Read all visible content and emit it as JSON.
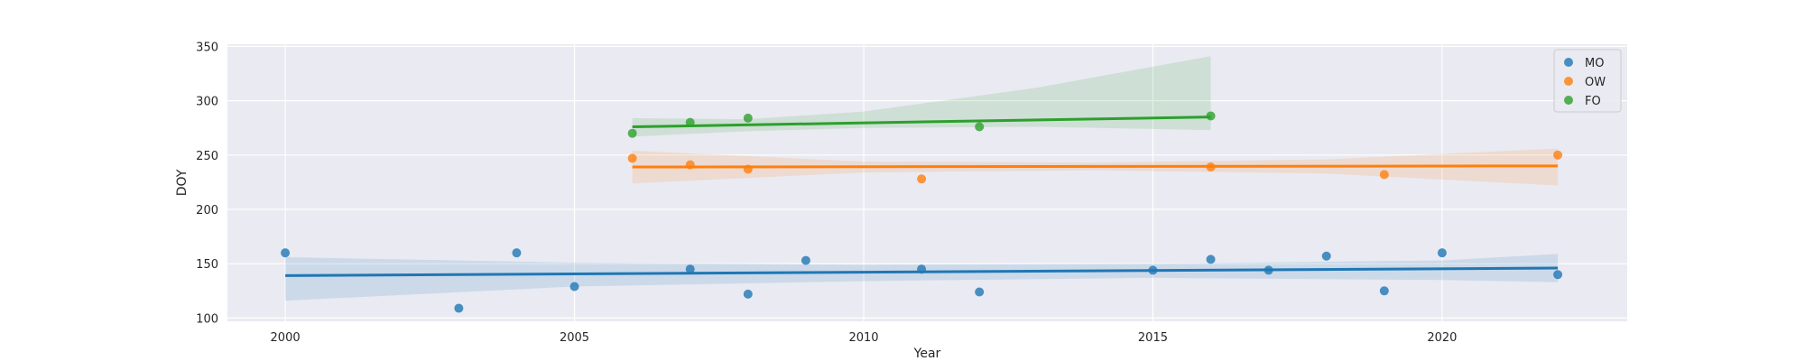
{
  "chart_data": {
    "type": "scatter",
    "xlabel": "Year",
    "ylabel": "DOY",
    "xlim": [
      1999,
      2023.2
    ],
    "ylim": [
      97,
      352
    ],
    "x_ticks": [
      2000,
      2005,
      2010,
      2015,
      2020
    ],
    "y_ticks": [
      100,
      150,
      200,
      250,
      300,
      350
    ],
    "grid": true,
    "legend_position": "top-right",
    "series": [
      {
        "name": "MO",
        "color": "#1f77b4",
        "points": [
          [
            2000,
            160
          ],
          [
            2003,
            109
          ],
          [
            2004,
            160
          ],
          [
            2005,
            129
          ],
          [
            2007,
            145
          ],
          [
            2008,
            122
          ],
          [
            2009,
            153
          ],
          [
            2011,
            145
          ],
          [
            2012,
            124
          ],
          [
            2015,
            144
          ],
          [
            2016,
            154
          ],
          [
            2017,
            144
          ],
          [
            2018,
            157
          ],
          [
            2019,
            125
          ],
          [
            2020,
            160
          ],
          [
            2022,
            140
          ]
        ],
        "fit": [
          [
            2000,
            139
          ],
          [
            2022,
            146
          ]
        ],
        "ci_upper": [
          [
            2000,
            156
          ],
          [
            2005,
            151
          ],
          [
            2010,
            149
          ],
          [
            2015,
            150
          ],
          [
            2020,
            153
          ],
          [
            2022,
            159
          ]
        ],
        "ci_lower": [
          [
            2000,
            116
          ],
          [
            2005,
            129
          ],
          [
            2010,
            134
          ],
          [
            2015,
            137
          ],
          [
            2020,
            135
          ],
          [
            2022,
            133
          ]
        ]
      },
      {
        "name": "OW",
        "color": "#ff7f0e",
        "points": [
          [
            2006,
            247
          ],
          [
            2007,
            241
          ],
          [
            2008,
            237
          ],
          [
            2011,
            228
          ],
          [
            2016,
            239
          ],
          [
            2019,
            232
          ],
          [
            2022,
            250
          ]
        ],
        "fit": [
          [
            2006,
            239
          ],
          [
            2022,
            240
          ]
        ],
        "ci_upper": [
          [
            2006,
            254
          ],
          [
            2010,
            244
          ],
          [
            2014,
            243
          ],
          [
            2018,
            246
          ],
          [
            2022,
            256
          ]
        ],
        "ci_lower": [
          [
            2006,
            224
          ],
          [
            2010,
            234
          ],
          [
            2014,
            236
          ],
          [
            2018,
            233
          ],
          [
            2022,
            222
          ]
        ]
      },
      {
        "name": "FO",
        "color": "#2ca02c",
        "points": [
          [
            2006,
            270
          ],
          [
            2007,
            280
          ],
          [
            2008,
            284
          ],
          [
            2012,
            276
          ],
          [
            2016,
            286
          ]
        ],
        "fit": [
          [
            2006,
            276
          ],
          [
            2016,
            285
          ]
        ],
        "ci_upper": [
          [
            2006,
            284
          ],
          [
            2008,
            283
          ],
          [
            2010,
            290
          ],
          [
            2013,
            312
          ],
          [
            2016,
            341
          ]
        ],
        "ci_lower": [
          [
            2006,
            267
          ],
          [
            2008,
            272
          ],
          [
            2010,
            275
          ],
          [
            2013,
            276
          ],
          [
            2016,
            273
          ]
        ]
      }
    ]
  }
}
